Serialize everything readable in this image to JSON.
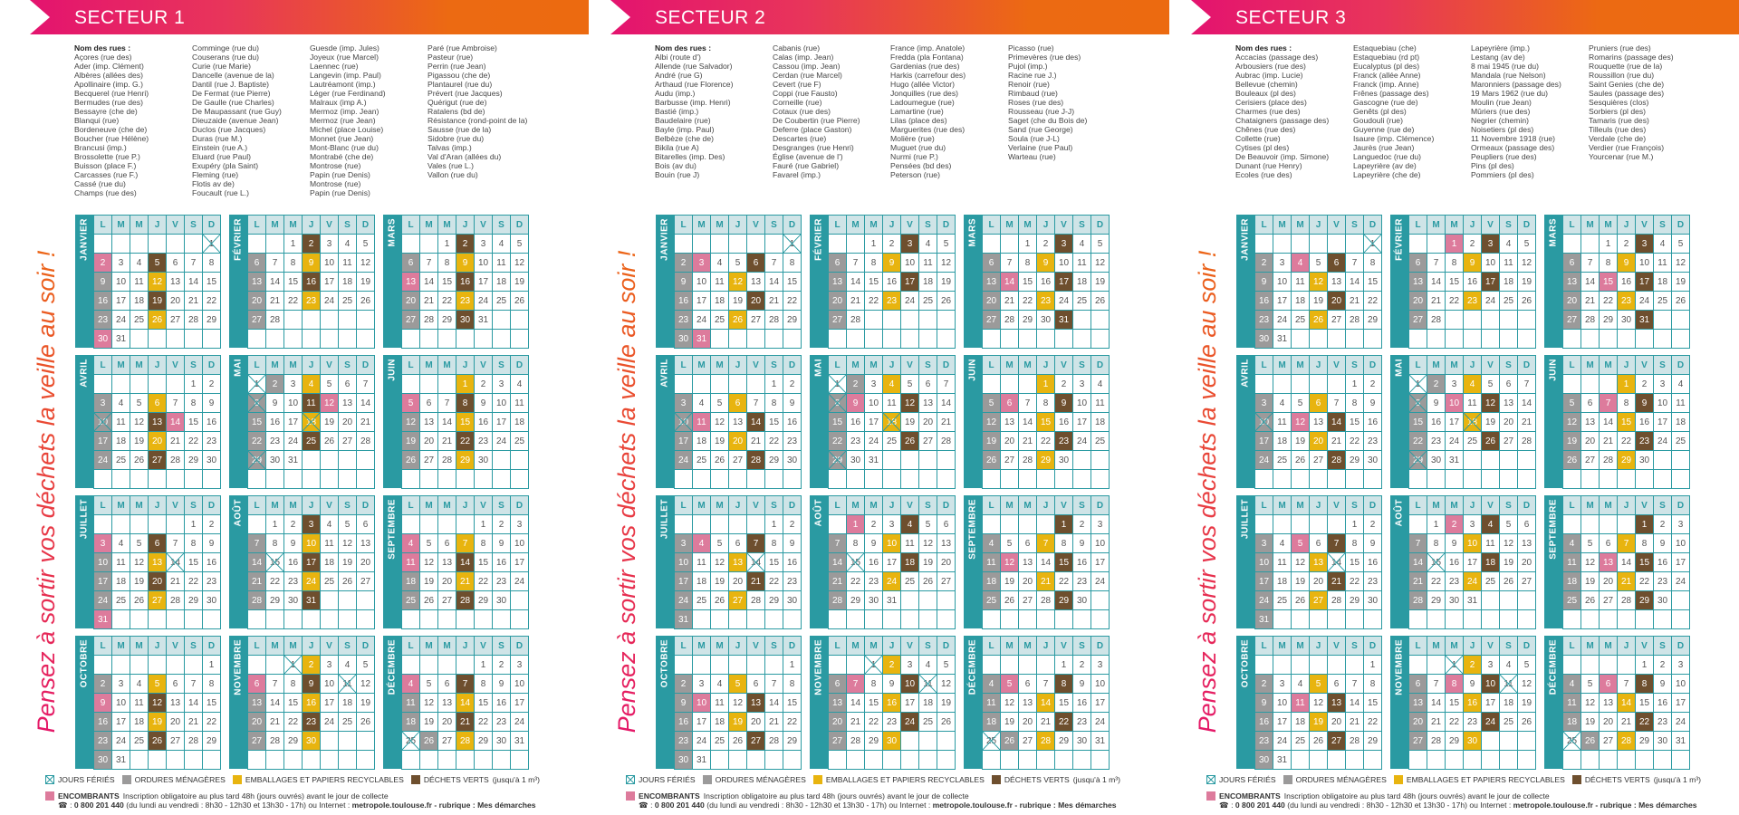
{
  "calendar": {
    "weekdays": [
      "L",
      "M",
      "M",
      "J",
      "V",
      "S",
      "D"
    ],
    "months": [
      {
        "name": "JANVIER",
        "first_weekday": 6,
        "days": 31,
        "holidays": [
          1
        ]
      },
      {
        "name": "FÉVRIER",
        "first_weekday": 2,
        "days": 28,
        "holidays": []
      },
      {
        "name": "MARS",
        "first_weekday": 2,
        "days": 31,
        "holidays": []
      },
      {
        "name": "AVRIL",
        "first_weekday": 5,
        "days": 30,
        "holidays": [
          10
        ]
      },
      {
        "name": "MAI",
        "first_weekday": 0,
        "days": 31,
        "holidays": [
          1,
          8,
          18,
          29
        ]
      },
      {
        "name": "JUIN",
        "first_weekday": 3,
        "days": 30,
        "holidays": []
      },
      {
        "name": "JUILLET",
        "first_weekday": 5,
        "days": 31,
        "holidays": [
          14
        ]
      },
      {
        "name": "AOÛT",
        "first_weekday": 1,
        "days": 31,
        "holidays": [
          15
        ]
      },
      {
        "name": "SEPTEMBRE",
        "first_weekday": 4,
        "days": 30,
        "holidays": []
      },
      {
        "name": "OCTOBRE",
        "first_weekday": 6,
        "days": 31,
        "holidays": []
      },
      {
        "name": "NOVEMBRE",
        "first_weekday": 2,
        "days": 30,
        "holidays": [
          1,
          11
        ]
      },
      {
        "name": "DÉCEMBRE",
        "first_weekday": 4,
        "days": 31,
        "holidays": [
          25
        ]
      }
    ]
  },
  "colors": {
    "g": "#9b9a9a",
    "y": "#e8b40f",
    "b": "#6e4f2e",
    "p": "#dd7b9c",
    "teal": "#2a9aa2",
    "brand_pink": "#e4136f",
    "brand_orange": "#ec6a10"
  },
  "mark_codes": {
    "g": "ordures-menageres",
    "y": "emballages-recyclables",
    "b": "dechets-verts",
    "p": "encombrants"
  },
  "slogan": "Pensez à sortir vos déchets la veille au soir !",
  "legend": {
    "holidays": "JOURS FÉRIÉS",
    "household": "ORDURES MÉNAGÈRES",
    "recycling": "EMBALLAGES ET PAPIERS RECYCLABLES",
    "green": "DÉCHETS VERTS",
    "green_note": "(jusqu'à 1 m³)",
    "bulky": "ENCOMBRANTS",
    "bulky_note": "Inscription obligatoire au plus tard 48h (jours ouvrés) avant le jour de collecte",
    "phone_prefix": "☎ : ",
    "phone": "0 800 201 440",
    "hours": " (du lundi au vendredi : 8h30 - 12h30 et 13h30 - 17h) ou Internet : ",
    "website": "metropole.toulouse.fr - rubrique : Mes démarches"
  },
  "sectors": [
    {
      "title": "SECTEUR 1",
      "streets_heading": "Nom des rues :",
      "street_columns": [
        [
          "Açores (rue des)",
          "Ader (imp. Clément)",
          "Albères (allées des)",
          "Apollinaire (imp. G.)",
          "Becquerel (rue Henri)",
          "Bermudes (rue des)",
          "Bessayre (che de)",
          "Blanqui (rue)",
          "Bordeneuve (che de)",
          "Boucher (rue Hélène)",
          "Brancusi (imp.)",
          "Brossolette (rue P.)",
          "Buisson (place F.)",
          "Carcasses (rue F.)",
          "Cassé (rue du)",
          "Champs (rue des)"
        ],
        [
          "Comminge (rue du)",
          "Couserans (rue du)",
          "Curie (rue Marie)",
          "Dancelle (avenue de la)",
          "Dantil (rue J. Baptiste)",
          "De Fermat (rue Pierre)",
          "De Gaulle (rue Charles)",
          "De Maupassant (rue Guy)",
          "Dieuzaide (avenue Jean)",
          "Duclos (rue Jacques)",
          "Duras (rue M.)",
          "Einstein (rue A.)",
          "Eluard (rue Paul)",
          "Exupéry (pla Saint)",
          "Fleming (rue)",
          "Flotis av de)",
          "Foucault (rue L.)"
        ],
        [
          "Guesde (imp. Jules)",
          "Joyeux (rue Marcel)",
          "Laennec (rue)",
          "Langevin (imp. Paul)",
          "Lautréamont (imp.)",
          "Léger (rue Ferdinand)",
          "Malraux (imp A.)",
          "Mermoz (imp. Jean)",
          "Mermoz (rue Jean)",
          "Michel (place Louise)",
          "Monnet (rue Jean)",
          "Mont-Blanc (rue du)",
          "Montrabé (che de)",
          "Montrose (rue)",
          "Papin (rue Denis)",
          "Montrose (rue)",
          "Papin (rue Denis)"
        ],
        [
          "Paré (rue Ambroise)",
          "Pasteur (rue)",
          "Perrin (rue Jean)",
          "Pigassou (che de)",
          "Plantaurel (rue du)",
          "Prévert (rue Jacques)",
          "Quérigut (rue de)",
          "Ratalens (bd de)",
          "Résistance (rond-point de la)",
          "Sausse (rue de la)",
          "Sidobre (rue du)",
          "Talvas (imp.)",
          "Val d'Aran (allées du)",
          "Vales (rue L.)",
          "Vallon (rue du)"
        ]
      ],
      "marks": [
        {
          "2": "p",
          "5": "b",
          "9": "g",
          "12": "y",
          "16": "g",
          "19": "b",
          "23": "g",
          "26": "y",
          "30": "p"
        },
        {
          "2": "b",
          "6": "g",
          "9": "y",
          "13": "g",
          "16": "b",
          "20": "g",
          "23": "y",
          "27": "g"
        },
        {
          "2": "b",
          "6": "g",
          "9": "y",
          "13": "p",
          "16": "b",
          "20": "g",
          "23": "y",
          "27": "g",
          "30": "b"
        },
        {
          "3": "g",
          "6": "y",
          "10": "g",
          "13": "b",
          "14": "p",
          "17": "g",
          "20": "y",
          "24": "g",
          "27": "b"
        },
        {
          "2": "g",
          "4": "y",
          "8": "g",
          "11": "b",
          "12": "p",
          "15": "g",
          "18": "y",
          "22": "g",
          "25": "b",
          "29": "g"
        },
        {
          "1": "y",
          "5": "p",
          "8": "b",
          "12": "g",
          "15": "y",
          "19": "g",
          "22": "b",
          "26": "g",
          "29": "y"
        },
        {
          "3": "p",
          "6": "b",
          "10": "g",
          "13": "y",
          "17": "g",
          "20": "b",
          "24": "g",
          "27": "y",
          "31": "p"
        },
        {
          "3": "b",
          "7": "g",
          "10": "y",
          "14": "g",
          "17": "b",
          "21": "g",
          "24": "y",
          "28": "g",
          "31": "b"
        },
        {
          "4": "p",
          "7": "y",
          "11": "p",
          "14": "b",
          "18": "g",
          "21": "y",
          "25": "g",
          "28": "b"
        },
        {
          "2": "g",
          "5": "y",
          "9": "p",
          "12": "b",
          "16": "g",
          "19": "y",
          "23": "g",
          "26": "b",
          "30": "g"
        },
        {
          "2": "y",
          "6": "p",
          "9": "b",
          "13": "g",
          "16": "y",
          "20": "g",
          "23": "b",
          "27": "g",
          "30": "y"
        },
        {
          "4": "p",
          "7": "b",
          "11": "g",
          "14": "y",
          "18": "g",
          "21": "b",
          "26": "g",
          "28": "y"
        }
      ]
    },
    {
      "title": "SECTEUR 2",
      "streets_heading": "Nom des rues :",
      "street_columns": [
        [
          "Albi (route d')",
          "Allende (rue Salvador)",
          "André (rue G)",
          "Arthaud (rue Florence)",
          "Audu (imp.)",
          "Barbusse (imp. Henri)",
          "Bastié (imp.)",
          "Baudelaire (rue)",
          "Bayle (imp. Paul)",
          "Belbèze (che de)",
          "Bikila (rue A)",
          "Bitarelles (imp. Des)",
          "Bois (av du)",
          "Bouin (rue J)"
        ],
        [
          "Cabanis (rue)",
          "Calas (imp. Jean)",
          "Cassou (imp. Jean)",
          "Cerdan (rue Marcel)",
          "Cevert (rue F)",
          "Coppi (rue Fausto)",
          "Corneille (rue)",
          "Cotaux (rue des)",
          "De Coubertin (rue Pierre)",
          "Deferre (place Gaston)",
          "Descartes (rue)",
          "Desgranges (rue Henri)",
          "Église (avenue de l')",
          "Fauré (rue Gabriel)",
          "Favarel (imp.)"
        ],
        [
          "France (imp. Anatole)",
          "Fredda (pla Fontana)",
          "Gardenias (rue des)",
          "Harkis (carrefour des)",
          "Hugo (allée Victor)",
          "Jonquilles (rue des)",
          "Ladoumegue (rue)",
          "Lamartine (rue)",
          "Lilas (place des)",
          "Marguerites (rue des)",
          "Molière (rue)",
          "Muguet (rue du)",
          "Nurmi (rue P.)",
          "Pensées (bd des)",
          "Peterson (rue)"
        ],
        [
          "Picasso (rue)",
          "Primevères (rue des)",
          "Pujol (imp.)",
          "Racine rue J.)",
          "Renoir (rue)",
          "Rimbaud (rue)",
          "Roses (rue des)",
          "Rousseau (rue J-J)",
          "Saget (che du Bois de)",
          "Sand (rue George)",
          "Soula (rue J-L)",
          "Verlaine (rue Paul)",
          "Warteau (rue)"
        ]
      ],
      "marks": [
        {
          "2": "g",
          "3": "p",
          "6": "b",
          "9": "g",
          "12": "y",
          "16": "g",
          "20": "b",
          "23": "g",
          "26": "y",
          "30": "g",
          "31": "p"
        },
        {
          "3": "b",
          "6": "g",
          "9": "y",
          "13": "g",
          "17": "b",
          "20": "g",
          "23": "y",
          "27": "g"
        },
        {
          "3": "b",
          "6": "g",
          "9": "y",
          "13": "g",
          "14": "p",
          "17": "b",
          "20": "g",
          "23": "y",
          "27": "g",
          "31": "b"
        },
        {
          "3": "g",
          "6": "y",
          "10": "g",
          "11": "p",
          "14": "b",
          "17": "g",
          "20": "y",
          "24": "g",
          "28": "b"
        },
        {
          "2": "g",
          "4": "y",
          "8": "g",
          "9": "p",
          "12": "b",
          "15": "g",
          "18": "y",
          "22": "g",
          "26": "b",
          "29": "g"
        },
        {
          "1": "y",
          "5": "g",
          "6": "p",
          "9": "b",
          "12": "g",
          "15": "y",
          "19": "g",
          "23": "b",
          "26": "g",
          "29": "y"
        },
        {
          "3": "g",
          "4": "p",
          "7": "b",
          "10": "g",
          "13": "y",
          "17": "g",
          "21": "b",
          "24": "g",
          "27": "y",
          "31": "g"
        },
        {
          "1": "p",
          "4": "b",
          "7": "g",
          "10": "y",
          "14": "g",
          "18": "b",
          "21": "g",
          "24": "y",
          "28": "g"
        },
        {
          "1": "b",
          "4": "g",
          "7": "y",
          "11": "g",
          "12": "p",
          "15": "b",
          "18": "g",
          "21": "y",
          "25": "g",
          "29": "b"
        },
        {
          "2": "g",
          "5": "y",
          "9": "g",
          "10": "p",
          "13": "b",
          "16": "g",
          "19": "y",
          "23": "g",
          "27": "b",
          "30": "g"
        },
        {
          "2": "y",
          "6": "g",
          "7": "p",
          "10": "b",
          "13": "g",
          "16": "y",
          "20": "g",
          "24": "b",
          "27": "g",
          "30": "y"
        },
        {
          "4": "g",
          "5": "p",
          "8": "b",
          "11": "g",
          "14": "y",
          "18": "g",
          "22": "b",
          "26": "g",
          "28": "y"
        }
      ]
    },
    {
      "title": "SECTEUR 3",
      "streets_heading": "Nom des rues :",
      "street_columns": [
        [
          "Accacias (passage des)",
          "Arbousiers (rue des)",
          "Aubrac (imp. Lucie)",
          "Bellevue (chemin)",
          "Bouleaux (pl des)",
          "Cerisiers (place des)",
          "Charmes (rue des)",
          "Chataigners (passage des)",
          "Chênes (rue des)",
          "Collette (rue)",
          "Cytises (pl des)",
          "De Beauvoir (imp. Simone)",
          "Dunant (rue Henry)",
          "Ecoles (rue des)"
        ],
        [
          "Estaquebiau (che)",
          "Estaquebiau (rd pt)",
          "Eucalyptus (pl des)",
          "Franck (allée Anne)",
          "Franck (imp. Anne)",
          "Frênes (passage des)",
          "Gascogne (rue de)",
          "Genêts (pl des)",
          "Goudouli (rue)",
          "Guyenne (rue de)",
          "Isaure (imp. Clémence)",
          "Jaurès (rue Jean)",
          "Languedoc (rue du)",
          "Lapeyrière (av de)",
          "Lapeyrière (che de)"
        ],
        [
          "Lapeyrière (imp.)",
          "Lestang (av de)",
          "8 mai 1945 (rue du)",
          "Mandala (rue Nelson)",
          "Maronniers (passage des)",
          "19 Mars 1962 (rue du)",
          "Moulin (rue Jean)",
          "Mûriers (rue des)",
          "Negrier (chemin)",
          "Noisetiers (pl des)",
          "11 Novembre 1918 (rue)",
          "Ormeaux (passage des)",
          "Peupliers (rue des)",
          "Pins (pl des)",
          "Pommiers (pl des)"
        ],
        [
          "Pruniers (rue des)",
          "Romarins (passage des)",
          "Rouquette (rue de la)",
          "Roussillon (rue du)",
          "Saint Genies (che de)",
          "Saules (passage des)",
          "Sesquières (clos)",
          "Sorbiers (pl des)",
          "Tamaris (rue des)",
          "Tilleuls (rue des)",
          "Verdale (che de)",
          "Verdier (rue François)",
          "Yourcenar (rue M.)"
        ]
      ],
      "marks": [
        {
          "2": "g",
          "4": "p",
          "6": "b",
          "9": "g",
          "12": "y",
          "16": "g",
          "20": "b",
          "23": "g",
          "26": "y",
          "30": "g"
        },
        {
          "1": "p",
          "3": "b",
          "6": "g",
          "9": "y",
          "13": "g",
          "17": "b",
          "20": "g",
          "23": "y",
          "27": "g"
        },
        {
          "3": "b",
          "6": "g",
          "9": "y",
          "13": "g",
          "15": "p",
          "17": "b",
          "20": "g",
          "23": "y",
          "27": "g",
          "31": "b"
        },
        {
          "3": "g",
          "6": "y",
          "10": "g",
          "12": "p",
          "14": "b",
          "17": "g",
          "20": "y",
          "24": "g",
          "28": "b"
        },
        {
          "2": "g",
          "4": "y",
          "8": "g",
          "10": "p",
          "12": "b",
          "15": "g",
          "18": "y",
          "22": "g",
          "26": "b",
          "29": "g"
        },
        {
          "1": "y",
          "5": "g",
          "7": "p",
          "9": "b",
          "12": "g",
          "15": "y",
          "19": "g",
          "23": "b",
          "26": "g",
          "29": "y"
        },
        {
          "3": "g",
          "5": "p",
          "7": "b",
          "10": "g",
          "13": "y",
          "17": "g",
          "21": "b",
          "24": "g",
          "27": "y",
          "31": "g"
        },
        {
          "2": "p",
          "4": "b",
          "7": "g",
          "10": "y",
          "14": "g",
          "18": "b",
          "21": "g",
          "24": "y",
          "28": "g"
        },
        {
          "1": "b",
          "4": "g",
          "7": "y",
          "11": "g",
          "13": "p",
          "15": "b",
          "18": "g",
          "21": "y",
          "25": "g",
          "29": "b"
        },
        {
          "2": "g",
          "5": "y",
          "9": "g",
          "11": "p",
          "13": "b",
          "16": "g",
          "19": "y",
          "23": "g",
          "27": "b",
          "30": "g"
        },
        {
          "2": "y",
          "6": "g",
          "8": "p",
          "10": "b",
          "13": "g",
          "16": "y",
          "20": "g",
          "24": "b",
          "27": "g",
          "30": "y"
        },
        {
          "4": "g",
          "6": "p",
          "8": "b",
          "11": "g",
          "14": "y",
          "18": "g",
          "22": "b",
          "26": "g",
          "28": "y"
        }
      ]
    }
  ]
}
